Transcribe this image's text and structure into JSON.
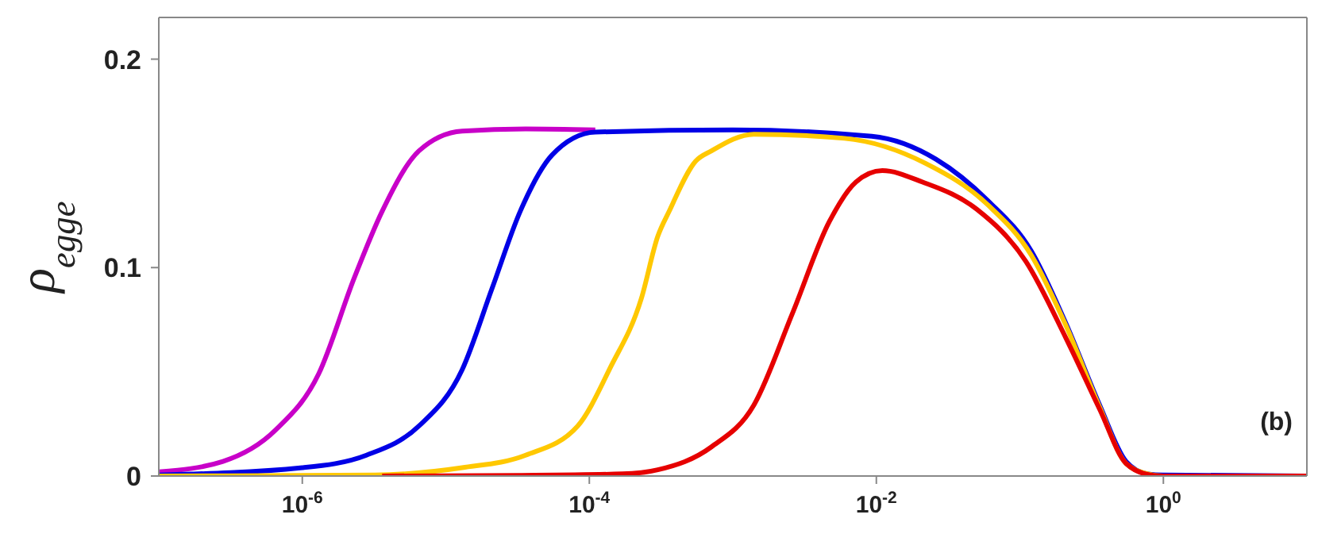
{
  "chart_data": {
    "type": "line",
    "ylabel": "ρ$_{egge}$",
    "log": "x",
    "marker": "none",
    "line_style": "solid",
    "xlim": [
      1e-07,
      10
    ],
    "ylim": [
      0,
      0.22
    ],
    "xticks": [
      {
        "value": 1e-06,
        "label": "10$^{-6}$"
      },
      {
        "value": 0.0001,
        "label": "10$^{-4}$"
      },
      {
        "value": 0.01,
        "label": "10$^{-2}$"
      },
      {
        "value": 1,
        "label": "10$^{0}$"
      }
    ],
    "yticks": [
      0,
      0.1,
      0.2
    ],
    "annotations": [
      "(b)"
    ],
    "series": [
      {
        "color": "#c800c8",
        "x": [
          1e-07,
          2.8e-07,
          6.5e-07,
          1.3e-06,
          2.3e-06,
          3.6e-06,
          6.5e-06,
          1.3e-05,
          3.6e-05,
          0.00011
        ],
        "values": [
          0.002,
          0.007,
          0.022,
          0.049,
          0.095,
          0.127,
          0.156,
          0.1655,
          0.1665,
          0.166
        ]
      },
      {
        "color": "#0000e6",
        "x": [
          1e-07,
          1e-06,
          2.8e-06,
          6.5e-06,
          1.3e-05,
          2.1e-05,
          3.3e-05,
          5.5e-05,
          0.00011,
          0.001,
          0.0093,
          0.026,
          0.06,
          0.12,
          0.21,
          0.36,
          0.55,
          0.78,
          1,
          10
        ],
        "values": [
          0.0005,
          0.004,
          0.01,
          0.024,
          0.051,
          0.09,
          0.127,
          0.154,
          0.165,
          0.166,
          0.163,
          0.152,
          0.132,
          0.108,
          0.073,
          0.034,
          0.007,
          0.001,
          0.0005,
          0
        ]
      },
      {
        "color": "#ffc800",
        "x": [
          1e-07,
          3.2e-06,
          1.3e-05,
          3.6e-05,
          8.3e-05,
          0.00014,
          0.00023,
          0.0003,
          0.00036,
          0.00055,
          0.00071,
          0.0014,
          0.006,
          0.022,
          0.06,
          0.12,
          0.21,
          0.36,
          0.55,
          0.78,
          1,
          10
        ],
        "values": [
          0,
          0.0005,
          0.004,
          0.01,
          0.024,
          0.052,
          0.085,
          0.115,
          0.127,
          0.151,
          0.156,
          0.164,
          0.162,
          0.15,
          0.13,
          0.106,
          0.072,
          0.033,
          0.006,
          0.001,
          0,
          0
        ]
      },
      {
        "color": "#e60000",
        "x": [
          3.6e-06,
          3.2e-05,
          0.00017,
          0.0003,
          0.00071,
          0.0014,
          0.0026,
          0.0047,
          0.0072,
          0.011,
          0.021,
          0.05,
          0.11,
          0.21,
          0.36,
          0.55,
          0.81,
          1,
          10
        ],
        "values": [
          0,
          0.0003,
          0.001,
          0.003,
          0.014,
          0.034,
          0.078,
          0.122,
          0.141,
          0.1465,
          0.141,
          0.128,
          0.103,
          0.066,
          0.032,
          0.006,
          0.0005,
          0,
          0
        ]
      }
    ]
  }
}
